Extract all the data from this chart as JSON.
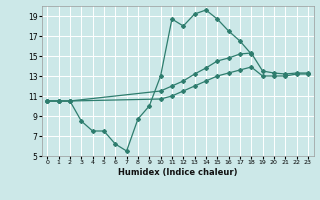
{
  "xlabel": "Humidex (Indice chaleur)",
  "xlim": [
    -0.5,
    23.5
  ],
  "ylim": [
    5,
    20
  ],
  "xticks": [
    0,
    1,
    2,
    3,
    4,
    5,
    6,
    7,
    8,
    9,
    10,
    11,
    12,
    13,
    14,
    15,
    16,
    17,
    18,
    19,
    20,
    21,
    22,
    23
  ],
  "yticks": [
    5,
    7,
    9,
    11,
    13,
    15,
    17,
    19
  ],
  "background_color": "#cce8e8",
  "grid_color": "#ffffff",
  "line_color": "#2e7d6e",
  "line1_x": [
    0,
    1,
    2,
    3,
    4,
    5,
    6,
    7,
    8,
    9,
    10,
    11,
    12,
    13,
    14,
    15,
    16,
    17,
    18
  ],
  "line1_y": [
    10.5,
    10.5,
    10.5,
    8.5,
    7.5,
    7.5,
    6.2,
    5.5,
    8.7,
    10.0,
    13.0,
    18.7,
    18.0,
    19.2,
    19.6,
    18.7,
    17.5,
    16.5,
    15.2
  ],
  "line2_x": [
    0,
    1,
    2,
    10,
    11,
    12,
    13,
    14,
    15,
    16,
    17,
    18,
    19,
    20,
    21,
    22,
    23
  ],
  "line2_y": [
    10.5,
    10.5,
    10.5,
    11.5,
    12.0,
    12.5,
    13.2,
    13.8,
    14.5,
    14.8,
    15.2,
    15.3,
    13.5,
    13.3,
    13.2,
    13.3,
    13.3
  ],
  "line3_x": [
    0,
    1,
    2,
    10,
    11,
    12,
    13,
    14,
    15,
    16,
    17,
    18,
    19,
    20,
    21,
    22,
    23
  ],
  "line3_y": [
    10.5,
    10.5,
    10.5,
    10.7,
    11.0,
    11.5,
    12.0,
    12.5,
    13.0,
    13.3,
    13.6,
    13.9,
    13.0,
    13.0,
    13.0,
    13.2,
    13.2
  ]
}
